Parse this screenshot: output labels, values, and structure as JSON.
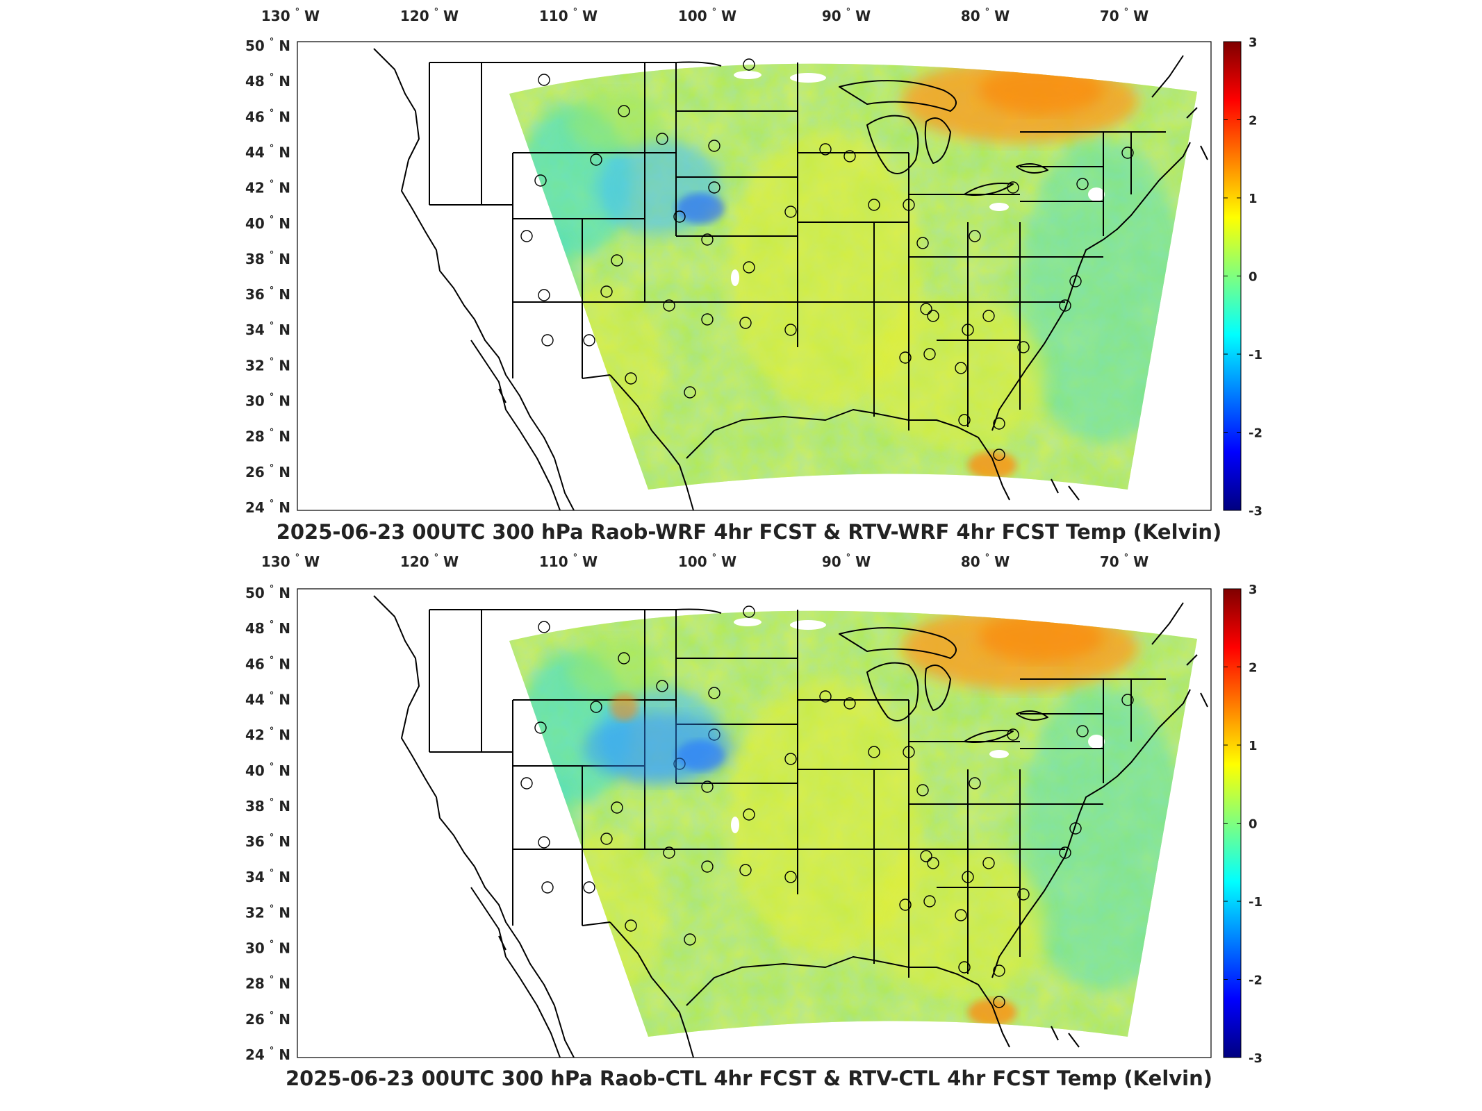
{
  "colorbar": {
    "min": -3,
    "max": 3,
    "tick_labels": [
      "3",
      "2",
      "1",
      "0",
      "-1",
      "-2",
      "-3"
    ],
    "colormap": [
      "#00007f",
      "#0000ff",
      "#007fff",
      "#00ffff",
      "#7fff7f",
      "#ffff00",
      "#ff7f00",
      "#ff0000",
      "#7f0000"
    ]
  },
  "axes": {
    "lon_labels": [
      "130",
      "120",
      "110",
      "100",
      "90",
      "80",
      "70"
    ],
    "lon_hemisphere": "W",
    "lat_labels": [
      "50",
      "48",
      "46",
      "44",
      "42",
      "40",
      "38",
      "36",
      "34",
      "32",
      "30",
      "28",
      "26",
      "24"
    ],
    "lat_hemisphere": "N"
  },
  "panels": [
    {
      "title": "2025-06-23 00UTC 300 hPa Raob-WRF 4hr FCST & RTV-WRF 4hr FCST Temp (Kelvin)"
    },
    {
      "title": "2025-06-23 00UTC 300 hPa Raob-CTL 4hr FCST & RTV-CTL 4hr FCST Temp (Kelvin)"
    }
  ],
  "chart_data": {
    "type": "heatmap",
    "variable": "Temp (Kelvin)",
    "level": "300 hPa",
    "valid_time": "2025-06-23 00UTC",
    "color_range": [
      -3,
      3
    ],
    "lon_range": [
      -130,
      -66
    ],
    "lat_range": [
      24,
      50
    ],
    "raob_station_count": 46
  },
  "colors": {
    "field_base": "#a8e84a",
    "field_green": "#7fe57f",
    "field_yellow": "#e6ef3a",
    "field_cyan": "#3fdfd0",
    "field_blue": "#3a7fff",
    "field_orange": "#ff9a1a",
    "border": "#000000"
  }
}
